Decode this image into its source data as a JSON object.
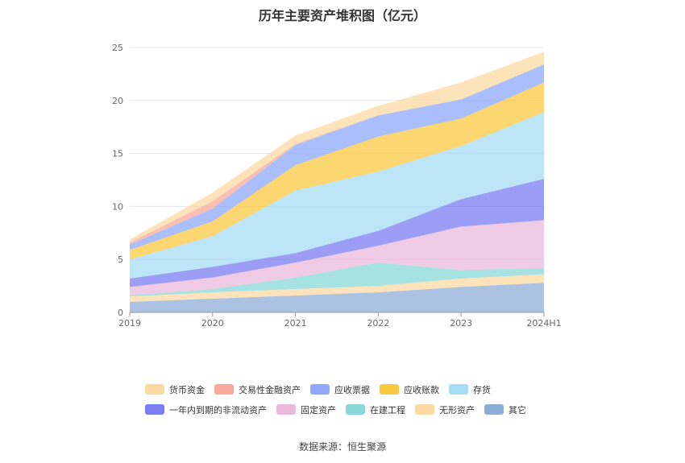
{
  "chart_data": {
    "type": "area",
    "stacked": true,
    "title": "历年主要资产堆积图（亿元）",
    "categories": [
      "2019",
      "2020",
      "2021",
      "2022",
      "2023",
      "2024H1"
    ],
    "ylim": [
      0,
      25
    ],
    "yticks": [
      0,
      5,
      10,
      15,
      20,
      25
    ],
    "xlabel": "",
    "ylabel": "",
    "series": [
      {
        "name": "其它",
        "color": "#8fadd9",
        "values": [
          1.0,
          1.3,
          1.6,
          1.9,
          2.4,
          2.8
        ]
      },
      {
        "name": "无形资产",
        "color": "#fcd9a1",
        "values": [
          0.5,
          0.6,
          0.6,
          0.6,
          0.8,
          0.8
        ]
      },
      {
        "name": "在建工程",
        "color": "#8ad8d8",
        "values": [
          0.1,
          0.3,
          1.1,
          2.2,
          0.8,
          0.6
        ]
      },
      {
        "name": "固定资产",
        "color": "#e9b9dc",
        "values": [
          0.8,
          1.1,
          1.4,
          1.6,
          4.1,
          4.5
        ]
      },
      {
        "name": "一年内到期的非流动资产",
        "color": "#7b7ef2",
        "values": [
          0.8,
          1.0,
          0.9,
          1.4,
          2.6,
          3.9
        ]
      },
      {
        "name": "存货",
        "color": "#a6dcf5",
        "values": [
          1.8,
          2.9,
          5.9,
          5.6,
          5.0,
          6.3
        ]
      },
      {
        "name": "应收账款",
        "color": "#fbc840",
        "values": [
          0.9,
          1.4,
          2.4,
          3.3,
          2.6,
          2.8
        ]
      },
      {
        "name": "应收票据",
        "color": "#8ea8fb",
        "values": [
          0.5,
          1.2,
          1.9,
          2.0,
          1.8,
          1.7
        ]
      },
      {
        "name": "交易性金融资产",
        "color": "#f7a99a",
        "values": [
          0.2,
          0.7,
          0.1,
          0.0,
          0.0,
          0.0
        ]
      },
      {
        "name": "货币资金",
        "color": "#fcd9a1",
        "values": [
          0.3,
          0.8,
          0.8,
          0.9,
          1.6,
          1.2
        ]
      }
    ],
    "legend_order": [
      "货币资金",
      "交易性金融资产",
      "应收票据",
      "应收账款",
      "存货",
      "一年内到期的非流动资产",
      "固定资产",
      "在建工程",
      "无形资产",
      "其它"
    ],
    "legend_position": "bottom"
  },
  "source_text": "数据来源：恒生聚源"
}
